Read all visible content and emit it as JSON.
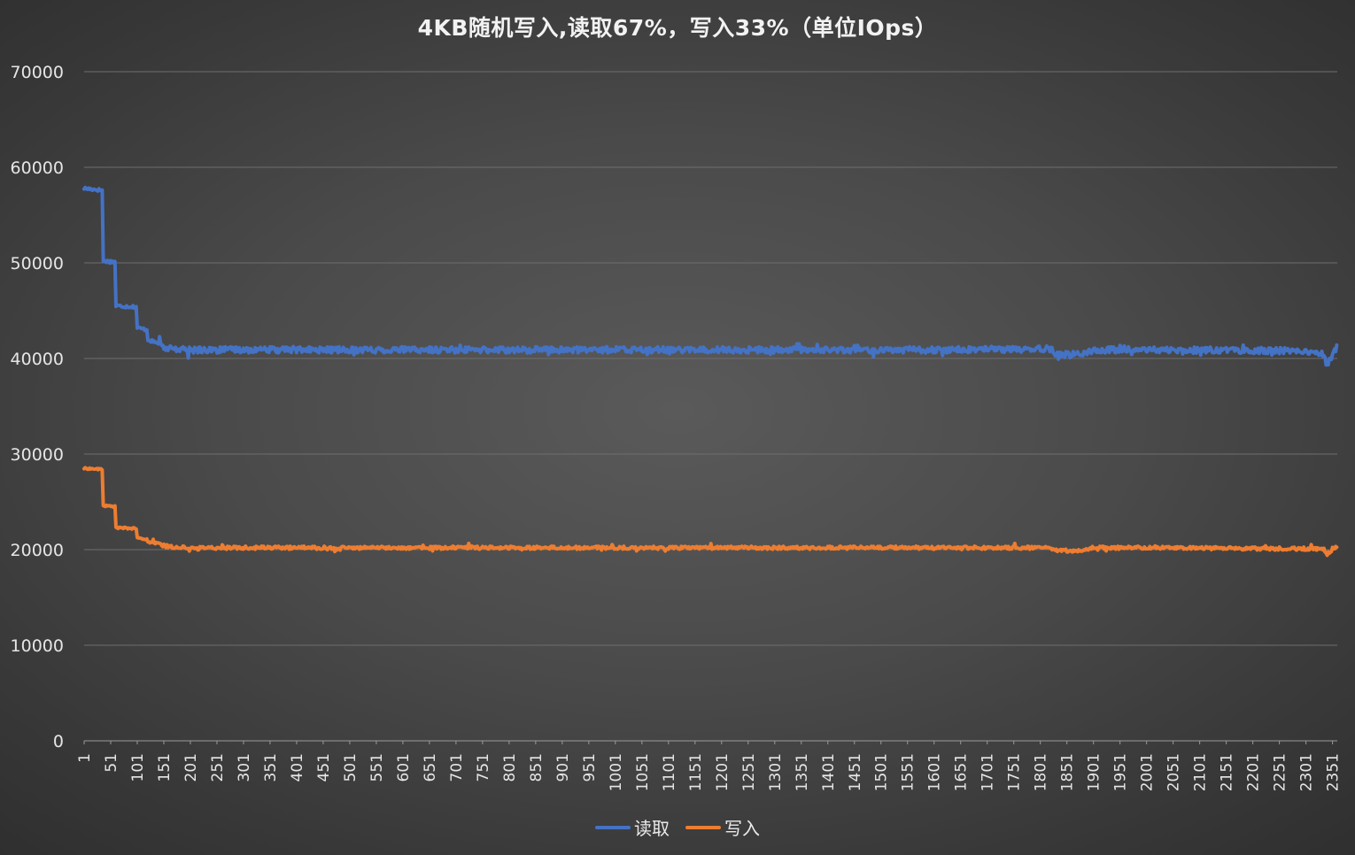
{
  "chart_data": {
    "type": "line",
    "title": "4KB随机写入,读取67%，写入33%（单位IOps）",
    "xlabel": "",
    "ylabel": "",
    "ylim": [
      0,
      70000
    ],
    "yticks": [
      "0",
      "10000",
      "20000",
      "30000",
      "40000",
      "50000",
      "60000",
      "70000"
    ],
    "xlim": [
      1,
      2360
    ],
    "xticks": [
      "1",
      "51",
      "101",
      "151",
      "201",
      "251",
      "301",
      "351",
      "401",
      "451",
      "501",
      "551",
      "601",
      "651",
      "701",
      "751",
      "801",
      "851",
      "901",
      "951",
      "1001",
      "1051",
      "1101",
      "1151",
      "1201",
      "1251",
      "1301",
      "1351",
      "1401",
      "1451",
      "1501",
      "1551",
      "1601",
      "1651",
      "1701",
      "1751",
      "1801",
      "1851",
      "1901",
      "1951",
      "2001",
      "2051",
      "2101",
      "2151",
      "2201",
      "2251",
      "2301",
      "2351"
    ],
    "grid": true,
    "legend_position": "bottom",
    "series": [
      {
        "name": "读取",
        "color": "#4472c4",
        "x": [
          1,
          35,
          36,
          60,
          61,
          100,
          101,
          120,
          121,
          140,
          160,
          200,
          400,
          800,
          1200,
          1600,
          1820,
          1830,
          1880,
          1900,
          2000,
          2300,
          2335,
          2340,
          2360
        ],
        "values": [
          57800,
          57600,
          50200,
          50100,
          45500,
          45400,
          43200,
          43000,
          42000,
          41500,
          41000,
          40900,
          40900,
          40900,
          40900,
          40900,
          41000,
          40400,
          40400,
          40900,
          40900,
          40800,
          40500,
          39300,
          41200
        ]
      },
      {
        "name": "写入",
        "color": "#ed7d31",
        "x": [
          1,
          35,
          36,
          60,
          61,
          100,
          101,
          120,
          121,
          140,
          160,
          200,
          400,
          800,
          1200,
          1600,
          1820,
          1830,
          1880,
          1900,
          2000,
          2300,
          2335,
          2340,
          2360
        ],
        "values": [
          28500,
          28400,
          24600,
          24500,
          22300,
          22200,
          21200,
          21100,
          20800,
          20600,
          20300,
          20200,
          20200,
          20200,
          20200,
          20200,
          20200,
          19900,
          19900,
          20200,
          20200,
          20100,
          20000,
          19500,
          20400
        ]
      }
    ]
  }
}
